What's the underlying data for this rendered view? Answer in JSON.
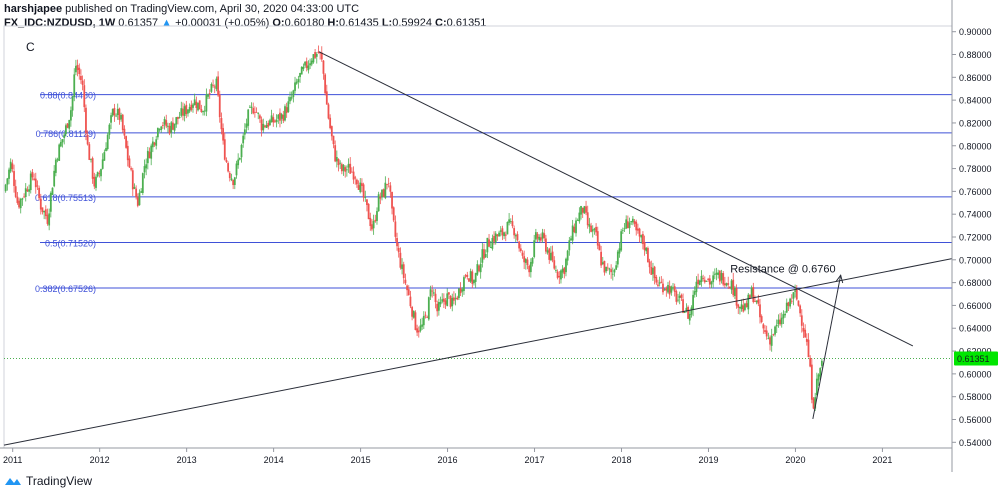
{
  "header": {
    "author": "harshjapee",
    "published": "published on TradingView.com, April 30, 2020 04:33:00 UTC",
    "symbol": "FX_IDC:NZDUSD, 1W",
    "last": "0.61357",
    "change_arrow": "▲",
    "change": "+0.00031 (+0.05%)",
    "o_label": "O:",
    "o": "0.60180",
    "h_label": "H:",
    "h": "0.61435",
    "l_label": "L:",
    "l": "0.59924",
    "c_label": "C:",
    "c": "0.61351"
  },
  "indicator_label": "C",
  "footer": {
    "brand": "TradingView"
  },
  "colors": {
    "up": "#26a69a",
    "up_body": "#4caf50",
    "down": "#ef5350",
    "fib": "#3f51d8",
    "price_line": "#4caf50",
    "price_badge": "#00e600"
  },
  "chart_data": {
    "type": "candlestick",
    "ylim": [
      0.535,
      0.905
    ],
    "xlim": [
      2010.9,
      2021.8
    ],
    "y_ticks": [
      "0.54000",
      "0.56000",
      "0.58000",
      "0.60000",
      "0.62000",
      "0.64000",
      "0.66000",
      "0.68000",
      "0.70000",
      "0.72000",
      "0.74000",
      "0.76000",
      "0.78000",
      "0.80000",
      "0.82000",
      "0.84000",
      "0.86000",
      "0.88000",
      "0.90000"
    ],
    "x_ticks": [
      {
        "label": "2011",
        "t": 2011.0
      },
      {
        "label": "2012",
        "t": 2012.0
      },
      {
        "label": "2013",
        "t": 2013.0
      },
      {
        "label": "2014",
        "t": 2014.0
      },
      {
        "label": "2015",
        "t": 2015.0
      },
      {
        "label": "2016",
        "t": 2016.0
      },
      {
        "label": "2017",
        "t": 2017.0
      },
      {
        "label": "2018",
        "t": 2018.0
      },
      {
        "label": "2019",
        "t": 2019.0
      },
      {
        "label": "2020",
        "t": 2020.0
      },
      {
        "label": "2021",
        "t": 2021.0
      }
    ],
    "current_price": {
      "value": 0.61351,
      "label": "0.61351"
    },
    "fib_levels": [
      {
        "label": "0.88(0.84480)",
        "value": 0.8448
      },
      {
        "label": "0.786(0.81129)",
        "value": 0.81129
      },
      {
        "label": "0.618(0.75513)",
        "value": 0.75513
      },
      {
        "label": "0.5(0.71520)",
        "value": 0.7152
      },
      {
        "label": "0.382(0.67526)",
        "value": 0.67526
      }
    ],
    "trend_lines": [
      {
        "from": [
          2014.52,
          0.8825
        ],
        "to": [
          2021.35,
          0.6245
        ]
      },
      {
        "from": [
          2010.9,
          0.5375
        ],
        "to": [
          2021.8,
          0.701
        ]
      }
    ],
    "arrow": {
      "from": [
        2020.2,
        0.5605
      ],
      "to": [
        2020.52,
        0.6865
      ]
    },
    "annotation": {
      "text": "Resistance @ 0.6760",
      "t": 2019.25,
      "value": 0.6925
    },
    "price_path": [
      [
        2010.9,
        0.76
      ],
      [
        2010.98,
        0.785
      ],
      [
        2011.06,
        0.748
      ],
      [
        2011.14,
        0.76
      ],
      [
        2011.24,
        0.775
      ],
      [
        2011.32,
        0.748
      ],
      [
        2011.4,
        0.736
      ],
      [
        2011.5,
        0.79
      ],
      [
        2011.6,
        0.812
      ],
      [
        2011.68,
        0.835
      ],
      [
        2011.72,
        0.872
      ],
      [
        2011.8,
        0.855
      ],
      [
        2011.86,
        0.8
      ],
      [
        2011.94,
        0.766
      ],
      [
        2012.0,
        0.776
      ],
      [
        2012.08,
        0.805
      ],
      [
        2012.16,
        0.832
      ],
      [
        2012.24,
        0.824
      ],
      [
        2012.32,
        0.79
      ],
      [
        2012.4,
        0.76
      ],
      [
        2012.44,
        0.75
      ],
      [
        2012.52,
        0.785
      ],
      [
        2012.6,
        0.8
      ],
      [
        2012.7,
        0.822
      ],
      [
        2012.8,
        0.815
      ],
      [
        2012.92,
        0.826
      ],
      [
        2013.0,
        0.832
      ],
      [
        2013.08,
        0.84
      ],
      [
        2013.18,
        0.832
      ],
      [
        2013.28,
        0.848
      ],
      [
        2013.34,
        0.855
      ],
      [
        2013.42,
        0.8
      ],
      [
        2013.48,
        0.778
      ],
      [
        2013.54,
        0.77
      ],
      [
        2013.62,
        0.795
      ],
      [
        2013.7,
        0.825
      ],
      [
        2013.78,
        0.835
      ],
      [
        2013.86,
        0.818
      ],
      [
        2013.94,
        0.82
      ],
      [
        2014.02,
        0.822
      ],
      [
        2014.1,
        0.826
      ],
      [
        2014.2,
        0.84
      ],
      [
        2014.28,
        0.858
      ],
      [
        2014.36,
        0.868
      ],
      [
        2014.44,
        0.878
      ],
      [
        2014.52,
        0.882
      ],
      [
        2014.56,
        0.872
      ],
      [
        2014.62,
        0.83
      ],
      [
        2014.7,
        0.792
      ],
      [
        2014.78,
        0.778
      ],
      [
        2014.86,
        0.78
      ],
      [
        2014.94,
        0.775
      ],
      [
        2015.02,
        0.758
      ],
      [
        2015.08,
        0.742
      ],
      [
        2015.14,
        0.726
      ],
      [
        2015.2,
        0.752
      ],
      [
        2015.26,
        0.758
      ],
      [
        2015.32,
        0.772
      ],
      [
        2015.36,
        0.74
      ],
      [
        2015.42,
        0.71
      ],
      [
        2015.48,
        0.69
      ],
      [
        2015.52,
        0.678
      ],
      [
        2015.58,
        0.66
      ],
      [
        2015.64,
        0.64
      ],
      [
        2015.7,
        0.64
      ],
      [
        2015.76,
        0.652
      ],
      [
        2015.82,
        0.678
      ],
      [
        2015.88,
        0.655
      ],
      [
        2015.94,
        0.662
      ],
      [
        2016.0,
        0.668
      ],
      [
        2016.06,
        0.66
      ],
      [
        2016.14,
        0.674
      ],
      [
        2016.22,
        0.69
      ],
      [
        2016.3,
        0.68
      ],
      [
        2016.38,
        0.7
      ],
      [
        2016.46,
        0.714
      ],
      [
        2016.54,
        0.72
      ],
      [
        2016.62,
        0.722
      ],
      [
        2016.7,
        0.73
      ],
      [
        2016.78,
        0.726
      ],
      [
        2016.86,
        0.7
      ],
      [
        2016.94,
        0.694
      ],
      [
        2017.02,
        0.72
      ],
      [
        2017.1,
        0.718
      ],
      [
        2017.18,
        0.702
      ],
      [
        2017.26,
        0.688
      ],
      [
        2017.34,
        0.692
      ],
      [
        2017.42,
        0.72
      ],
      [
        2017.5,
        0.738
      ],
      [
        2017.56,
        0.745
      ],
      [
        2017.62,
        0.728
      ],
      [
        2017.7,
        0.722
      ],
      [
        2017.76,
        0.7
      ],
      [
        2017.82,
        0.69
      ],
      [
        2017.9,
        0.688
      ],
      [
        2017.96,
        0.708
      ],
      [
        2018.02,
        0.728
      ],
      [
        2018.1,
        0.735
      ],
      [
        2018.18,
        0.722
      ],
      [
        2018.26,
        0.714
      ],
      [
        2018.34,
        0.692
      ],
      [
        2018.4,
        0.68
      ],
      [
        2018.46,
        0.678
      ],
      [
        2018.54,
        0.676
      ],
      [
        2018.62,
        0.668
      ],
      [
        2018.7,
        0.66
      ],
      [
        2018.78,
        0.65
      ],
      [
        2018.86,
        0.682
      ],
      [
        2018.94,
        0.688
      ],
      [
        2019.02,
        0.68
      ],
      [
        2019.1,
        0.686
      ],
      [
        2019.18,
        0.684
      ],
      [
        2019.26,
        0.68
      ],
      [
        2019.34,
        0.662
      ],
      [
        2019.42,
        0.656
      ],
      [
        2019.5,
        0.672
      ],
      [
        2019.56,
        0.66
      ],
      [
        2019.62,
        0.64
      ],
      [
        2019.7,
        0.63
      ],
      [
        2019.78,
        0.64
      ],
      [
        2019.86,
        0.65
      ],
      [
        2019.94,
        0.664
      ],
      [
        2020.0,
        0.67
      ],
      [
        2020.06,
        0.652
      ],
      [
        2020.12,
        0.632
      ],
      [
        2020.16,
        0.61
      ],
      [
        2020.2,
        0.572
      ],
      [
        2020.24,
        0.59
      ],
      [
        2020.28,
        0.604
      ],
      [
        2020.32,
        0.6135
      ]
    ]
  }
}
